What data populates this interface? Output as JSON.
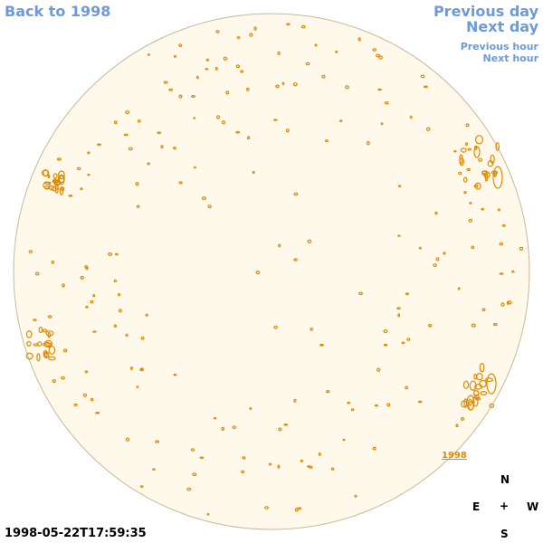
{
  "nav": {
    "back": "Back to 1998",
    "previous_day": "Previous day",
    "next_day": "Next day",
    "previous_hour": "Previous hour",
    "next_hour": "Next hour"
  },
  "timestamp": "1998-05-22T17:59:35",
  "region_label": "1998",
  "compass": {
    "north": "N",
    "east": "E",
    "center": "+",
    "west": "W",
    "south": "S"
  },
  "colors": {
    "disk_fill": "#fff9ec",
    "disk_stroke": "#c8b89a",
    "contour": "#e08a00",
    "link": "#6f9ad8"
  }
}
